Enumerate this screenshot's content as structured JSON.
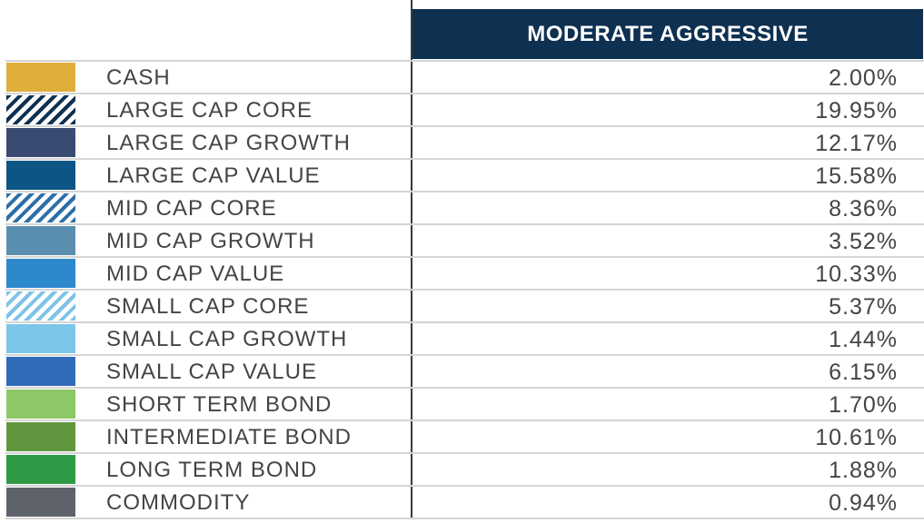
{
  "chart_data": {
    "type": "table",
    "column_header": "MODERATE AGGRESSIVE",
    "rows": [
      {
        "label": "CASH",
        "value": "2.00%",
        "color": "#e0ae3b",
        "pattern": "solid"
      },
      {
        "label": "LARGE CAP CORE",
        "value": "19.95%",
        "color": "#0e3051",
        "pattern": "hatched"
      },
      {
        "label": "LARGE CAP GROWTH",
        "value": "12.17%",
        "color": "#3a4b73",
        "pattern": "solid"
      },
      {
        "label": "LARGE CAP VALUE",
        "value": "15.58%",
        "color": "#0d5584",
        "pattern": "solid"
      },
      {
        "label": "MID CAP CORE",
        "value": "8.36%",
        "color": "#2d6fa8",
        "pattern": "hatched"
      },
      {
        "label": "MID CAP GROWTH",
        "value": "3.52%",
        "color": "#5a8eae",
        "pattern": "solid"
      },
      {
        "label": "MID CAP VALUE",
        "value": "10.33%",
        "color": "#2e88cc",
        "pattern": "solid"
      },
      {
        "label": "SMALL CAP CORE",
        "value": "5.37%",
        "color": "#7ec3e6",
        "pattern": "hatched"
      },
      {
        "label": "SMALL CAP GROWTH",
        "value": "1.44%",
        "color": "#7cc6ea",
        "pattern": "solid"
      },
      {
        "label": "SMALL CAP VALUE",
        "value": "6.15%",
        "color": "#2f6bb8",
        "pattern": "solid"
      },
      {
        "label": "SHORT TERM BOND",
        "value": "1.70%",
        "color": "#8dc866",
        "pattern": "solid"
      },
      {
        "label": "INTERMEDIATE BOND",
        "value": "10.61%",
        "color": "#62973f",
        "pattern": "solid"
      },
      {
        "label": "LONG TERM BOND",
        "value": "1.88%",
        "color": "#2f9a45",
        "pattern": "solid"
      },
      {
        "label": "COMMODITY",
        "value": "0.94%",
        "color": "#5e636b",
        "pattern": "solid"
      }
    ]
  }
}
